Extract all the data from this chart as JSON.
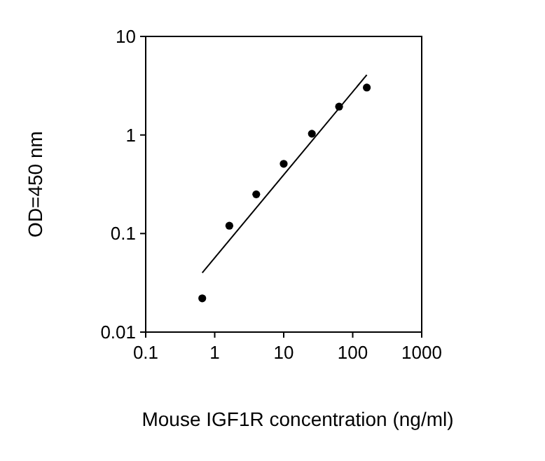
{
  "chart_data": {
    "type": "scatter",
    "xlabel": "Mouse IGF1R concentration (ng/ml)",
    "ylabel": "OD=450 nm",
    "log": "xy",
    "grid": false,
    "xlim": [
      0.1,
      1000
    ],
    "xticks": [
      0.1,
      1,
      10,
      100,
      1000
    ],
    "ylim": [
      0.01,
      10
    ],
    "yticks": [
      0.01,
      0.1,
      1,
      10
    ],
    "series": [
      {
        "color": "#000000",
        "marker": "circle",
        "x": [
          0.66,
          1.63,
          4,
          10,
          25.6,
          63.5,
          160
        ],
        "values": [
          0.022,
          0.12,
          0.25,
          0.51,
          1.03,
          1.94,
          3.03
        ]
      },
      {
        "type": "line",
        "color": "#000000",
        "marker": "none",
        "line_style": "solid",
        "x": [
          0.66,
          160
        ],
        "values": [
          0.04,
          4.07
        ]
      }
    ]
  }
}
